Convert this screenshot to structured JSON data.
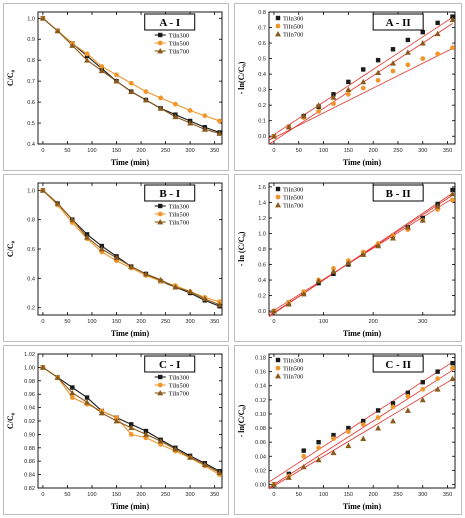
{
  "colors": {
    "TiIn300": "#1a1a1a",
    "TiIn500": "#f0962a",
    "TiIn700": "#8a5a1c",
    "fit": "#e8302a",
    "panel_border": "#bdbdbd"
  },
  "chart_data": [
    {
      "type": "line",
      "panel_label": "A - I",
      "xlabel": "Time (min)",
      "ylabel": "C/C₀",
      "xlim": [
        -10,
        365
      ],
      "ylim": [
        0.4,
        1.03
      ],
      "xticks": [
        0,
        50,
        100,
        150,
        200,
        250,
        300,
        350
      ],
      "yticks": [
        0.4,
        0.5,
        0.6,
        0.7,
        0.8,
        0.9,
        1.0
      ],
      "ytick_labels": [
        "0.4",
        "0.5",
        "0.6",
        "0.7",
        "0.8",
        "0.9",
        "1.0"
      ],
      "legend_position": "top-right",
      "x": [
        0,
        30,
        60,
        90,
        120,
        150,
        180,
        210,
        240,
        270,
        300,
        330,
        360
      ],
      "series": [
        {
          "name": "TiIn300",
          "marker": "square",
          "values": [
            1.0,
            0.94,
            0.88,
            0.82,
            0.76,
            0.7,
            0.65,
            0.61,
            0.57,
            0.54,
            0.51,
            0.48,
            0.455
          ]
        },
        {
          "name": "TiIn500",
          "marker": "circle",
          "values": [
            1.0,
            0.94,
            0.88,
            0.83,
            0.77,
            0.73,
            0.69,
            0.65,
            0.62,
            0.59,
            0.56,
            0.535,
            0.51
          ]
        },
        {
          "name": "TiIn700",
          "marker": "triangle",
          "values": [
            1.0,
            0.94,
            0.87,
            0.8,
            0.75,
            0.7,
            0.65,
            0.61,
            0.57,
            0.53,
            0.5,
            0.47,
            0.45
          ]
        }
      ]
    },
    {
      "type": "scatter",
      "panel_label": "A - II",
      "xlabel": "Time (min)",
      "ylabel": "- ln(C/C₀)",
      "xlim": [
        -10,
        365
      ],
      "ylim": [
        -0.05,
        0.8
      ],
      "xticks": [
        0,
        50,
        100,
        150,
        200,
        250,
        300,
        350
      ],
      "yticks": [
        0.0,
        0.1,
        0.2,
        0.3,
        0.4,
        0.5,
        0.6,
        0.7,
        0.8
      ],
      "ytick_labels": [
        "0.0",
        "0.1",
        "0.2",
        "0.3",
        "0.4",
        "0.5",
        "0.6",
        "0.7",
        "0.8"
      ],
      "legend_position": "top-left",
      "x": [
        0,
        30,
        60,
        90,
        120,
        150,
        180,
        210,
        240,
        270,
        300,
        330,
        360
      ],
      "series": [
        {
          "name": "TiIn300",
          "marker": "square",
          "values": [
            0.0,
            0.06,
            0.13,
            0.19,
            0.27,
            0.35,
            0.43,
            0.49,
            0.56,
            0.62,
            0.67,
            0.73,
            0.77
          ],
          "fit": [
            0.01,
            0.0021
          ]
        },
        {
          "name": "TiIn500",
          "marker": "circle",
          "values": [
            0.0,
            0.06,
            0.12,
            0.16,
            0.21,
            0.27,
            0.31,
            0.36,
            0.42,
            0.46,
            0.5,
            0.53,
            0.57
          ],
          "fit": [
            -0.01,
            0.0016
          ]
        },
        {
          "name": "TiIn700",
          "marker": "triangle",
          "values": [
            0.0,
            0.06,
            0.13,
            0.2,
            0.25,
            0.3,
            0.35,
            0.41,
            0.47,
            0.54,
            0.6,
            0.66,
            0.75
          ],
          "fit": [
            -0.03,
            0.0021
          ]
        }
      ]
    },
    {
      "type": "line",
      "panel_label": "B - I",
      "xlabel": "Time (min)",
      "ylabel": "C/C₀",
      "xlim": [
        -10,
        365
      ],
      "ylim": [
        0.15,
        1.05
      ],
      "xticks": [
        0,
        50,
        100,
        150,
        200,
        250,
        300,
        350
      ],
      "yticks": [
        0.2,
        0.4,
        0.6,
        0.8,
        1.0
      ],
      "ytick_labels": [
        "0.2",
        "0.4",
        "0.6",
        "0.8",
        "1.0"
      ],
      "legend_position": "top-right",
      "x": [
        0,
        30,
        60,
        90,
        120,
        150,
        180,
        210,
        240,
        270,
        300,
        330,
        360
      ],
      "series": [
        {
          "name": "TiIn300",
          "marker": "square",
          "values": [
            1.0,
            0.91,
            0.8,
            0.7,
            0.62,
            0.55,
            0.48,
            0.43,
            0.38,
            0.34,
            0.3,
            0.25,
            0.21
          ]
        },
        {
          "name": "TiIn500",
          "marker": "circle",
          "values": [
            1.0,
            0.9,
            0.78,
            0.67,
            0.58,
            0.52,
            0.47,
            0.42,
            0.38,
            0.35,
            0.31,
            0.27,
            0.24
          ]
        },
        {
          "name": "TiIn700",
          "marker": "triangle",
          "values": [
            1.0,
            0.91,
            0.8,
            0.68,
            0.6,
            0.54,
            0.48,
            0.43,
            0.39,
            0.34,
            0.31,
            0.26,
            0.22
          ]
        }
      ]
    },
    {
      "type": "scatter",
      "panel_label": "B - II",
      "xlabel": "Time (min)",
      "ylabel": "- ln (C/C₀)",
      "xlim": [
        -10,
        365
      ],
      "ylim": [
        -0.05,
        1.65
      ],
      "xticks": [
        0,
        100,
        200,
        300
      ],
      "yticks": [
        0.0,
        0.2,
        0.4,
        0.6,
        0.8,
        1.0,
        1.2,
        1.4,
        1.6
      ],
      "ytick_labels": [
        "0.0",
        "0.2",
        "0.4",
        "0.6",
        "0.8",
        "1.0",
        "1.2",
        "1.4",
        "1.6"
      ],
      "legend_position": "top-left",
      "x": [
        0,
        30,
        60,
        90,
        120,
        150,
        180,
        210,
        240,
        270,
        300,
        330,
        360
      ],
      "series": [
        {
          "name": "TiIn300",
          "marker": "square",
          "values": [
            0.0,
            0.11,
            0.23,
            0.36,
            0.48,
            0.6,
            0.73,
            0.85,
            0.97,
            1.08,
            1.2,
            1.38,
            1.56
          ],
          "fit": [
            -0.03,
            0.0043
          ]
        },
        {
          "name": "TiIn500",
          "marker": "circle",
          "values": [
            0.0,
            0.11,
            0.25,
            0.4,
            0.55,
            0.65,
            0.76,
            0.87,
            0.97,
            1.05,
            1.17,
            1.31,
            1.43
          ],
          "fit": [
            0.01,
            0.004
          ]
        },
        {
          "name": "TiIn700",
          "marker": "triangle",
          "values": [
            0.0,
            0.09,
            0.22,
            0.39,
            0.51,
            0.62,
            0.73,
            0.84,
            0.94,
            1.08,
            1.17,
            1.35,
            1.51
          ],
          "fit": [
            -0.02,
            0.0042
          ]
        }
      ]
    },
    {
      "type": "line",
      "panel_label": "C - I",
      "xlabel": "Time (min)",
      "ylabel": "C/C₀",
      "xlim": [
        -10,
        365
      ],
      "ylim": [
        0.82,
        1.02
      ],
      "xticks": [
        0,
        50,
        100,
        150,
        200,
        250,
        300,
        350
      ],
      "yticks": [
        0.82,
        0.84,
        0.86,
        0.88,
        0.9,
        0.92,
        0.94,
        0.96,
        0.98,
        1.0,
        1.02
      ],
      "ytick_labels": [
        "0.82",
        "0.84",
        "0.86",
        "0.88",
        "0.90",
        "0.92",
        "0.94",
        "0.96",
        "0.98",
        "1.00",
        "1.02"
      ],
      "legend_position": "top-right",
      "x": [
        0,
        30,
        60,
        90,
        120,
        150,
        180,
        210,
        240,
        270,
        300,
        330,
        360
      ],
      "series": [
        {
          "name": "TiIn300",
          "marker": "square",
          "values": [
            1.0,
            0.985,
            0.97,
            0.955,
            0.935,
            0.925,
            0.915,
            0.905,
            0.892,
            0.88,
            0.868,
            0.857,
            0.845
          ]
        },
        {
          "name": "TiIn500",
          "marker": "circle",
          "values": [
            1.0,
            0.985,
            0.955,
            0.945,
            0.935,
            0.925,
            0.9,
            0.895,
            0.885,
            0.875,
            0.865,
            0.853,
            0.84
          ]
        },
        {
          "name": "TiIn700",
          "marker": "triangle",
          "values": [
            1.0,
            0.985,
            0.962,
            0.948,
            0.932,
            0.92,
            0.91,
            0.9,
            0.89,
            0.878,
            0.866,
            0.855,
            0.843
          ]
        }
      ]
    },
    {
      "type": "scatter",
      "panel_label": "C - II",
      "xlabel": "Time (min)",
      "ylabel": "- ln(C/C₀)",
      "xlim": [
        -10,
        365
      ],
      "ylim": [
        -0.005,
        0.185
      ],
      "xticks": [
        0,
        50,
        100,
        150,
        200,
        250,
        300,
        350
      ],
      "yticks": [
        0.0,
        0.02,
        0.04,
        0.06,
        0.08,
        0.1,
        0.12,
        0.14,
        0.16,
        0.18
      ],
      "ytick_labels": [
        "0.00",
        "0.02",
        "0.04",
        "0.06",
        "0.08",
        "0.10",
        "0.12",
        "0.14",
        "0.16",
        "0.18"
      ],
      "legend_position": "top-left",
      "x": [
        0,
        30,
        60,
        90,
        120,
        150,
        180,
        210,
        240,
        270,
        300,
        330,
        360
      ],
      "series": [
        {
          "name": "TiIn300",
          "marker": "square",
          "values": [
            0.0,
            0.015,
            0.048,
            0.06,
            0.07,
            0.08,
            0.09,
            0.105,
            0.115,
            0.13,
            0.145,
            0.16,
            0.172
          ],
          "fit": [
            0.008,
            0.00046
          ]
        },
        {
          "name": "TiIn500",
          "marker": "circle",
          "values": [
            0.0,
            0.012,
            0.04,
            0.052,
            0.065,
            0.075,
            0.085,
            0.095,
            0.11,
            0.125,
            0.135,
            0.15,
            0.165
          ],
          "fit": [
            0.0,
            0.00045
          ]
        },
        {
          "name": "TiIn700",
          "marker": "triangle",
          "values": [
            0.0,
            0.01,
            0.025,
            0.035,
            0.045,
            0.055,
            0.065,
            0.08,
            0.09,
            0.105,
            0.12,
            0.135,
            0.15
          ],
          "fit": [
            -0.002,
            0.00042
          ]
        }
      ]
    }
  ]
}
